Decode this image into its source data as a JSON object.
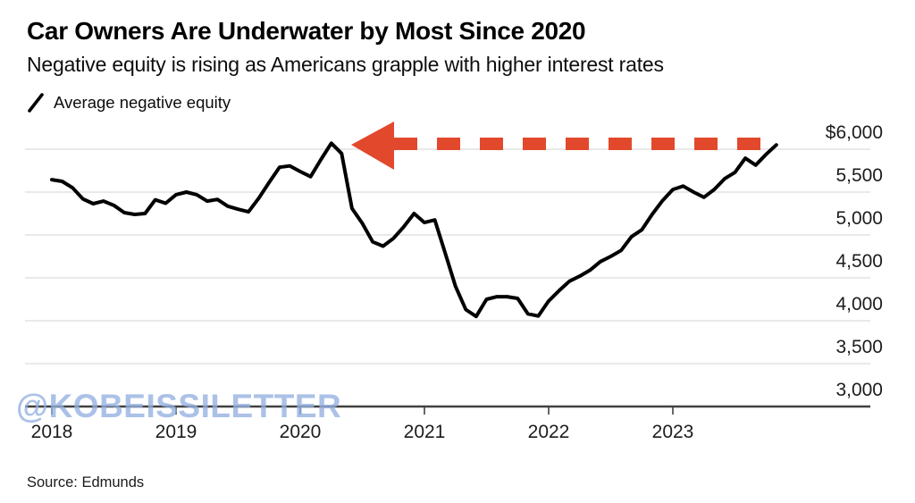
{
  "header": {
    "title": "Car Owners Are Underwater by Most Since 2020",
    "subtitle": "Negative equity is rising as Americans grapple with higher interest rates",
    "legend": {
      "marker": "line-slash",
      "label": "Average negative equity"
    }
  },
  "watermark": "@KOBEISSILETTER",
  "source": "Source: Edmunds",
  "colors": {
    "line": "#000000",
    "arrow": "#e2492c",
    "gridline": "#dcdcdc",
    "axis": "#414141",
    "watermark": "#94b0e0"
  },
  "chart_data": {
    "type": "line",
    "title": "Car Owners Are Underwater by Most Since 2020",
    "subtitle": "Negative equity is rising as Americans grapple with higher interest rates",
    "xlabel": "",
    "ylabel": "Average negative equity ($)",
    "x_start": "2018-01",
    "x_interval": "monthly",
    "x_ticks": [
      "2018",
      "2019",
      "2020",
      "2021",
      "2022",
      "2023"
    ],
    "y_ticks": [
      {
        "label": "$6,000",
        "value": 6000
      },
      {
        "label": "5,500",
        "value": 5500
      },
      {
        "label": "5,000",
        "value": 5000
      },
      {
        "label": "4,500",
        "value": 4500
      },
      {
        "label": "4,000",
        "value": 4000
      },
      {
        "label": "3,500",
        "value": 3500
      },
      {
        "label": "3,000",
        "value": 3000
      }
    ],
    "ylim": [
      3000,
      6000
    ],
    "grid": true,
    "legend_position": "top-left",
    "y_axis_side": "right",
    "series": [
      {
        "name": "Average negative equity",
        "color": "#000000",
        "unit": "USD",
        "values": [
          5645,
          5625,
          5550,
          5420,
          5365,
          5395,
          5345,
          5260,
          5240,
          5250,
          5410,
          5370,
          5470,
          5500,
          5470,
          5395,
          5415,
          5335,
          5300,
          5270,
          5430,
          5615,
          5790,
          5805,
          5740,
          5680,
          5880,
          6070,
          5950,
          5310,
          5135,
          4920,
          4870,
          4960,
          5095,
          5250,
          5145,
          5175,
          4790,
          4400,
          4130,
          4050,
          4250,
          4280,
          4280,
          4260,
          4080,
          4055,
          4230,
          4350,
          4460,
          4520,
          4590,
          4690,
          4750,
          4820,
          4980,
          5060,
          5240,
          5400,
          5530,
          5570,
          5500,
          5440,
          5530,
          5655,
          5730,
          5895,
          5815,
          5940,
          6050
        ]
      }
    ],
    "annotation": {
      "type": "dashed-arrow",
      "direction": "left",
      "color": "#e2492c",
      "meaning": "latest value matches the April 2020 peak"
    }
  }
}
